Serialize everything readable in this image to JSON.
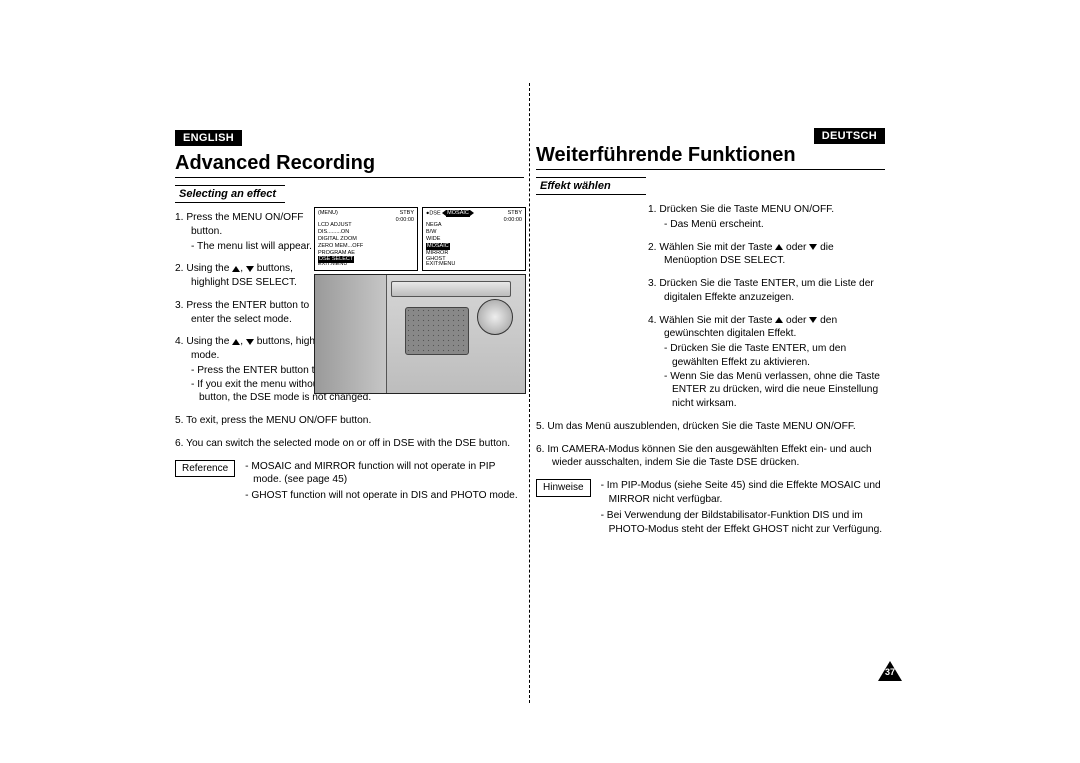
{
  "page_number": "37",
  "en": {
    "lang": "ENGLISH",
    "title": "Advanced Recording",
    "subhead": "Selecting an effect",
    "steps": [
      {
        "n": "1.",
        "text": "Press the MENU ON/OFF button.",
        "sub": [
          "- The menu list will appear."
        ]
      },
      {
        "n": "2.",
        "text": "Using the ▲, ▼ buttons, highlight DSE SELECT.",
        "sub": []
      },
      {
        "n": "3.",
        "text": "Press the ENTER button to enter the select mode.",
        "sub": []
      },
      {
        "n": "4.",
        "text": "Using the ▲, ▼ buttons, highlight and select a DSE mode.",
        "sub": [
          "- Press the ENTER button to confirm the DSE mode.",
          "- If you exit the menu without pressing the ENTER button, the DSE mode is not changed."
        ]
      },
      {
        "n": "5.",
        "text": "To exit, press the MENU ON/OFF button.",
        "sub": []
      },
      {
        "n": "6.",
        "text": "You can switch the selected mode on or off in DSE with the DSE button.",
        "sub": []
      }
    ],
    "ref_label": "Reference",
    "ref_items": [
      "- MOSAIC and MIRROR function will not operate in PIP mode. (see page 45)",
      "- GHOST function will not operate in DIS  and PHOTO mode."
    ],
    "osd1": {
      "tl": "(MENU)",
      "tr_top": "STBY",
      "tr_bot": "0:00:00",
      "lines": [
        "LCD  ADJUST",
        "DIS.........ON",
        "DIGITAL ZOOM",
        "ZERO  MEM...OFF",
        "PROGRAM  AE"
      ],
      "hl": "DSE  SELECT",
      "exit": "EXIT:MENU"
    },
    "osd2": {
      "tl_pre": "●DSE",
      "tl_hl": "MOSAIC",
      "tr_top": "STBY",
      "tr_bot": "0:00:00",
      "lines": [
        "NEGA",
        "B/W",
        "WIDE"
      ],
      "hl": "MOSAIC",
      "lines2": [
        "MIRROR",
        "GHOST"
      ],
      "exit": "EXIT:MENU"
    }
  },
  "de": {
    "lang": "DEUTSCH",
    "title": "Weiterführende Funktionen",
    "subhead": "Effekt wählen",
    "steps": [
      {
        "n": "1.",
        "text": "Drücken Sie die Taste MENU ON/OFF.",
        "sub": [
          "- Das Menü erscheint."
        ]
      },
      {
        "n": "2.",
        "text": "Wählen Sie mit der Taste ▲ oder ▼ die Menüoption DSE SELECT.",
        "sub": []
      },
      {
        "n": "3.",
        "text": "Drücken Sie die Taste ENTER, um die Liste der digitalen Effekte anzuzeigen.",
        "sub": []
      },
      {
        "n": "4.",
        "text": "Wählen Sie mit der Taste ▲ oder ▼ den gewünschten digitalen Effekt.",
        "sub": [
          "- Drücken Sie die Taste ENTER, um den gewählten Effekt zu aktivieren.",
          "- Wenn Sie das Menü verlassen, ohne die Taste ENTER zu drücken, wird die neue Einstellung nicht wirksam."
        ]
      },
      {
        "n": "5.",
        "text": "Um das Menü auszublenden, drücken Sie die Taste MENU ON/OFF.",
        "sub": []
      },
      {
        "n": "6.",
        "text": "Im CAMERA-Modus können Sie den ausgewählten Effekt ein- und auch wieder ausschalten, indem Sie die Taste DSE drücken.",
        "sub": []
      }
    ],
    "ref_label": "Hinweise",
    "ref_items": [
      "- Im PIP-Modus (siehe Seite 45) sind die Effekte MOSAIC und MIRROR nicht verfügbar.",
      "- Bei Verwendung der Bildstabilisator-Funktion DIS und im PHOTO-Modus steht der Effekt GHOST nicht zur Verfügung."
    ]
  }
}
